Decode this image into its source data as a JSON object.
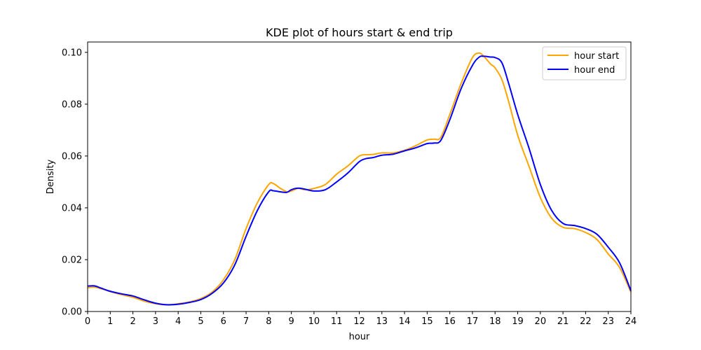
{
  "chart_data": {
    "type": "line",
    "title": "KDE plot of hours start & end trip",
    "xlabel": "hour",
    "ylabel": "Density",
    "xlim": [
      0,
      24
    ],
    "ylim": [
      0,
      0.104
    ],
    "x_ticks": [
      0,
      1,
      2,
      3,
      4,
      5,
      6,
      7,
      8,
      9,
      10,
      11,
      12,
      13,
      14,
      15,
      16,
      17,
      18,
      19,
      20,
      21,
      22,
      23,
      24
    ],
    "x_tick_labels": [
      "0",
      "1",
      "2",
      "3",
      "4",
      "5",
      "6",
      "7",
      "8",
      "9",
      "10",
      "11",
      "12",
      "13",
      "14",
      "15",
      "16",
      "17",
      "18",
      "19",
      "20",
      "21",
      "22",
      "23",
      "24"
    ],
    "y_ticks": [
      0,
      0.02,
      0.04,
      0.06,
      0.08,
      0.1
    ],
    "y_tick_labels": [
      "0.00",
      "0.02",
      "0.04",
      "0.06",
      "0.08",
      "0.10"
    ],
    "grid": false,
    "legend_position": "top-right",
    "series": [
      {
        "name": "hour start",
        "color": "#ffa500",
        "x": [
          0,
          0.3,
          0.6,
          1,
          1.5,
          2,
          2.5,
          3,
          3.5,
          4,
          4.5,
          5,
          5.5,
          6,
          6.5,
          7,
          7.5,
          8,
          8.2,
          8.5,
          8.8,
          9,
          9.3,
          9.6,
          10,
          10.5,
          11,
          11.5,
          12,
          12.3,
          12.6,
          13,
          13.5,
          14,
          14.5,
          15,
          15.3,
          15.6,
          16,
          16.5,
          17,
          17.3,
          17.5,
          17.8,
          18,
          18.3,
          18.6,
          19,
          19.5,
          20,
          20.5,
          21,
          21.5,
          22,
          22.5,
          23,
          23.5,
          24
        ],
        "values": [
          0.0092,
          0.0094,
          0.0088,
          0.0077,
          0.0065,
          0.0055,
          0.004,
          0.003,
          0.0026,
          0.003,
          0.0037,
          0.005,
          0.0075,
          0.0122,
          0.02,
          0.032,
          0.042,
          0.049,
          0.0494,
          0.0476,
          0.0462,
          0.0465,
          0.0475,
          0.047,
          0.0475,
          0.049,
          0.053,
          0.0562,
          0.06,
          0.0605,
          0.0606,
          0.0612,
          0.0612,
          0.0622,
          0.064,
          0.0662,
          0.0665,
          0.0672,
          0.076,
          0.088,
          0.098,
          0.0997,
          0.0985,
          0.0955,
          0.094,
          0.0895,
          0.081,
          0.068,
          0.056,
          0.044,
          0.036,
          0.0325,
          0.032,
          0.0305,
          0.0278,
          0.0222,
          0.017,
          0.0075
        ]
      },
      {
        "name": "hour end",
        "color": "#0000ff",
        "x": [
          0,
          0.3,
          0.6,
          1,
          1.5,
          2,
          2.5,
          3,
          3.5,
          4,
          4.5,
          5,
          5.5,
          6,
          6.5,
          7,
          7.5,
          8,
          8.2,
          8.5,
          8.8,
          9,
          9.3,
          9.6,
          10,
          10.5,
          11,
          11.5,
          12,
          12.3,
          12.6,
          13,
          13.5,
          14,
          14.5,
          15,
          15.3,
          15.6,
          16,
          16.5,
          17,
          17.3,
          17.5,
          17.8,
          18,
          18.3,
          18.6,
          19,
          19.5,
          20,
          20.5,
          21,
          21.5,
          22,
          22.5,
          23,
          23.5,
          24
        ],
        "values": [
          0.0098,
          0.0099,
          0.009,
          0.0078,
          0.0068,
          0.006,
          0.0045,
          0.0032,
          0.0026,
          0.0028,
          0.0035,
          0.0046,
          0.007,
          0.011,
          0.018,
          0.029,
          0.039,
          0.0462,
          0.0466,
          0.0462,
          0.046,
          0.047,
          0.0476,
          0.0472,
          0.0465,
          0.047,
          0.05,
          0.0535,
          0.0578,
          0.059,
          0.0594,
          0.0603,
          0.0607,
          0.062,
          0.0632,
          0.0648,
          0.065,
          0.066,
          0.074,
          0.086,
          0.095,
          0.0982,
          0.0985,
          0.0982,
          0.098,
          0.096,
          0.088,
          0.076,
          0.063,
          0.049,
          0.039,
          0.034,
          0.0332,
          0.032,
          0.0298,
          0.0248,
          0.0188,
          0.008
        ]
      }
    ]
  }
}
